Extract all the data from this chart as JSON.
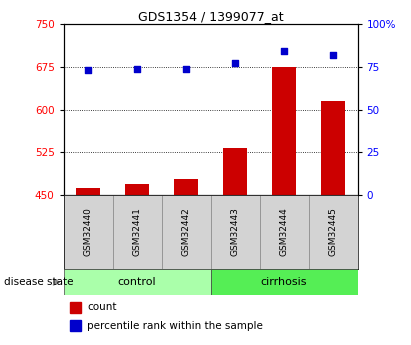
{
  "title": "GDS1354 / 1399077_at",
  "samples": [
    "GSM32440",
    "GSM32441",
    "GSM32442",
    "GSM32443",
    "GSM32444",
    "GSM32445"
  ],
  "counts": [
    462,
    470,
    478,
    533,
    675,
    615
  ],
  "percentile_ranks": [
    73,
    74,
    74,
    77,
    84,
    82
  ],
  "ylim_left": [
    450,
    750
  ],
  "ylim_right": [
    0,
    100
  ],
  "yticks_left": [
    450,
    525,
    600,
    675,
    750
  ],
  "yticks_right": [
    0,
    25,
    50,
    75,
    100
  ],
  "ytick_labels_right": [
    "0",
    "25",
    "50",
    "75",
    "100%"
  ],
  "groups": [
    {
      "label": "control",
      "color": "#aaffaa"
    },
    {
      "label": "cirrhosis",
      "color": "#55ee55"
    }
  ],
  "bar_color": "#cc0000",
  "dot_color": "#0000cc",
  "bar_width": 0.5,
  "disease_state_label": "disease state",
  "legend_items": [
    {
      "label": "count",
      "color": "#cc0000"
    },
    {
      "label": "percentile rank within the sample",
      "color": "#0000cc"
    }
  ]
}
